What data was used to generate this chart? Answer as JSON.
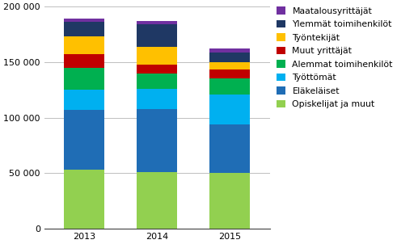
{
  "years": [
    2013,
    2014,
    2015
  ],
  "categories": [
    "Opiskelijat ja muut",
    "Eläkeläiset",
    "Työttömät",
    "Alemmat toimihenkilöt",
    "Muut yrittäjät",
    "Työntekijät",
    "Ylemmät toimihenkilöt",
    "Maatalousyrittäjät"
  ],
  "colors": [
    "#92d050",
    "#1f6db5",
    "#00b0f0",
    "#00b050",
    "#c00000",
    "#ffc000",
    "#1f3864",
    "#7030a0"
  ],
  "values": {
    "Opiskelijat ja muut": [
      53000,
      51000,
      50000
    ],
    "Eläkeläiset": [
      54000,
      57000,
      44000
    ],
    "Työttömät": [
      18000,
      18000,
      27000
    ],
    "Alemmat toimihenkilöt": [
      20000,
      14000,
      14000
    ],
    "Muut yrittäjät": [
      12000,
      8000,
      8000
    ],
    "Työntekijät": [
      16000,
      16000,
      7000
    ],
    "Ylemmät toimihenkilöt": [
      13000,
      20000,
      9000
    ],
    "Maatalousyrittäjät": [
      3000,
      3000,
      3000
    ]
  },
  "ylim": [
    0,
    200000
  ],
  "yticks": [
    0,
    50000,
    100000,
    150000,
    200000
  ],
  "ytick_labels": [
    "0",
    "50 000",
    "100 000",
    "150 000",
    "200 000"
  ],
  "bar_width": 0.55,
  "bg_color": "#ffffff",
  "grid_color": "#bfbfbf",
  "font_size": 8,
  "legend_font_size": 7.8
}
